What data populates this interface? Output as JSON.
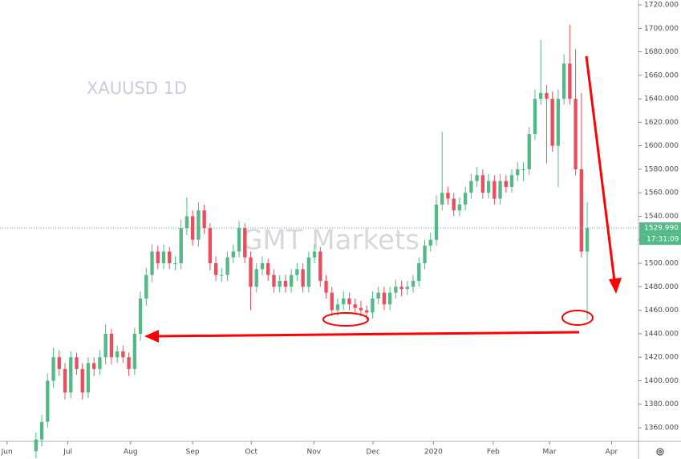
{
  "chart_data": {
    "type": "candlestick",
    "title": "XAUUSD 1D",
    "watermark": "GMT Markets",
    "up_color": "#53b987",
    "down_color": "#eb4d5c",
    "open": [
      1340,
      1350,
      1365,
      1400,
      1420,
      1410,
      1390,
      1420,
      1410,
      1390,
      1415,
      1410,
      1420,
      1440,
      1420,
      1425,
      1420,
      1410,
      1440,
      1470,
      1490,
      1510,
      1500,
      1510,
      1500,
      1500,
      1530,
      1540,
      1520,
      1545,
      1530,
      1500,
      1490,
      1490,
      1505,
      1510,
      1530,
      1505,
      1480,
      1495,
      1500,
      1490,
      1480,
      1485,
      1480,
      1490,
      1495,
      1480,
      1505,
      1510,
      1485,
      1475,
      1460,
      1465,
      1470,
      1465,
      1462,
      1460,
      1458,
      1470,
      1475,
      1465,
      1475,
      1480,
      1478,
      1480,
      1485,
      1500,
      1515,
      1520,
      1550,
      1560,
      1555,
      1545,
      1550,
      1560,
      1570,
      1575,
      1560,
      1570,
      1555,
      1570,
      1565,
      1575,
      1580,
      1580,
      1610,
      1640,
      1645,
      1640,
      1600,
      1640,
      1670,
      1640,
      1580,
      1510
    ],
    "high": [
      1356,
      1371,
      1406,
      1428,
      1426,
      1415,
      1425,
      1424,
      1415,
      1420,
      1420,
      1426,
      1448,
      1444,
      1430,
      1430,
      1424,
      1445,
      1476,
      1496,
      1516,
      1515,
      1516,
      1514,
      1506,
      1537,
      1556,
      1545,
      1552,
      1550,
      1534,
      1506,
      1496,
      1510,
      1516,
      1536,
      1534,
      1510,
      1500,
      1506,
      1504,
      1495,
      1490,
      1490,
      1495,
      1500,
      1500,
      1510,
      1516,
      1514,
      1490,
      1480,
      1470,
      1476,
      1475,
      1470,
      1468,
      1464,
      1476,
      1480,
      1480,
      1480,
      1486,
      1485,
      1485,
      1490,
      1505,
      1520,
      1526,
      1558,
      1612,
      1565,
      1560,
      1556,
      1565,
      1576,
      1582,
      1580,
      1576,
      1575,
      1576,
      1575,
      1580,
      1586,
      1586,
      1616,
      1648,
      1690,
      1652,
      1646,
      1648,
      1678,
      1703,
      1682,
      1645,
      1552
    ],
    "low": [
      1334,
      1344,
      1360,
      1394,
      1404,
      1384,
      1385,
      1405,
      1384,
      1385,
      1404,
      1405,
      1414,
      1414,
      1415,
      1415,
      1404,
      1405,
      1434,
      1464,
      1484,
      1495,
      1495,
      1495,
      1494,
      1495,
      1524,
      1515,
      1514,
      1525,
      1494,
      1485,
      1484,
      1485,
      1500,
      1505,
      1500,
      1460,
      1475,
      1490,
      1485,
      1475,
      1475,
      1475,
      1475,
      1485,
      1475,
      1475,
      1500,
      1480,
      1470,
      1455,
      1455,
      1460,
      1460,
      1457,
      1455,
      1452,
      1453,
      1465,
      1460,
      1460,
      1470,
      1472,
      1473,
      1475,
      1480,
      1495,
      1510,
      1515,
      1545,
      1550,
      1540,
      1540,
      1545,
      1555,
      1565,
      1555,
      1555,
      1550,
      1550,
      1560,
      1560,
      1570,
      1570,
      1575,
      1605,
      1635,
      1585,
      1595,
      1565,
      1635,
      1635,
      1575,
      1505,
      1452
    ],
    "close": [
      1350,
      1365,
      1400,
      1420,
      1410,
      1390,
      1420,
      1410,
      1390,
      1415,
      1410,
      1420,
      1440,
      1420,
      1425,
      1420,
      1410,
      1440,
      1470,
      1490,
      1510,
      1500,
      1510,
      1500,
      1500,
      1530,
      1540,
      1520,
      1545,
      1530,
      1500,
      1490,
      1490,
      1505,
      1510,
      1530,
      1505,
      1480,
      1495,
      1500,
      1490,
      1480,
      1485,
      1480,
      1490,
      1495,
      1480,
      1505,
      1510,
      1485,
      1475,
      1460,
      1465,
      1470,
      1465,
      1462,
      1460,
      1458,
      1470,
      1475,
      1465,
      1475,
      1480,
      1478,
      1480,
      1485,
      1500,
      1515,
      1520,
      1550,
      1560,
      1555,
      1545,
      1550,
      1560,
      1570,
      1575,
      1560,
      1570,
      1555,
      1570,
      1565,
      1575,
      1580,
      1580,
      1610,
      1640,
      1645,
      1640,
      1600,
      1640,
      1670,
      1640,
      1580,
      1510,
      1530
    ],
    "xlim": [
      -6.2,
      103.7
    ],
    "xticks": [
      {
        "value": -5,
        "label": "Jun"
      },
      {
        "value": 5.5,
        "label": "Jul"
      },
      {
        "value": 16.3,
        "label": "Aug"
      },
      {
        "value": 27,
        "label": "Sep"
      },
      {
        "value": 37.1,
        "label": "Oct"
      },
      {
        "value": 47.9,
        "label": "Nov"
      },
      {
        "value": 58.1,
        "label": "Dec"
      },
      {
        "value": 68.5,
        "label": "2020"
      },
      {
        "value": 78.8,
        "label": "Feb"
      },
      {
        "value": 88.5,
        "label": "Mar"
      },
      {
        "value": 99.2,
        "label": "Apr"
      }
    ],
    "ylim": [
      1348.4,
      1724.1
    ],
    "yticks": [
      {
        "value": 1360,
        "label": "1360.000"
      },
      {
        "value": 1380,
        "label": "1380.000"
      },
      {
        "value": 1400,
        "label": "1400.000"
      },
      {
        "value": 1420,
        "label": "1420.000"
      },
      {
        "value": 1440,
        "label": "1440.000"
      },
      {
        "value": 1460,
        "label": "1460.000"
      },
      {
        "value": 1480,
        "label": "1480.000"
      },
      {
        "value": 1500,
        "label": "1500.000"
      },
      {
        "value": 1520,
        "label": "1520.000"
      },
      {
        "value": 1540,
        "label": "1540.000"
      },
      {
        "value": 1560,
        "label": "1560.000"
      },
      {
        "value": 1580,
        "label": "1580.000"
      },
      {
        "value": 1600,
        "label": "1600.000"
      },
      {
        "value": 1620,
        "label": "1620.000"
      },
      {
        "value": 1640,
        "label": "1640.000"
      },
      {
        "value": 1660,
        "label": "1660.000"
      },
      {
        "value": 1680,
        "label": "1680.000"
      },
      {
        "value": 1700,
        "label": "1700.000"
      },
      {
        "value": 1720,
        "label": "1720.000"
      }
    ],
    "current_price": {
      "value": 1529.99,
      "label": "1529.990"
    },
    "countdown": "17:31:09"
  }
}
